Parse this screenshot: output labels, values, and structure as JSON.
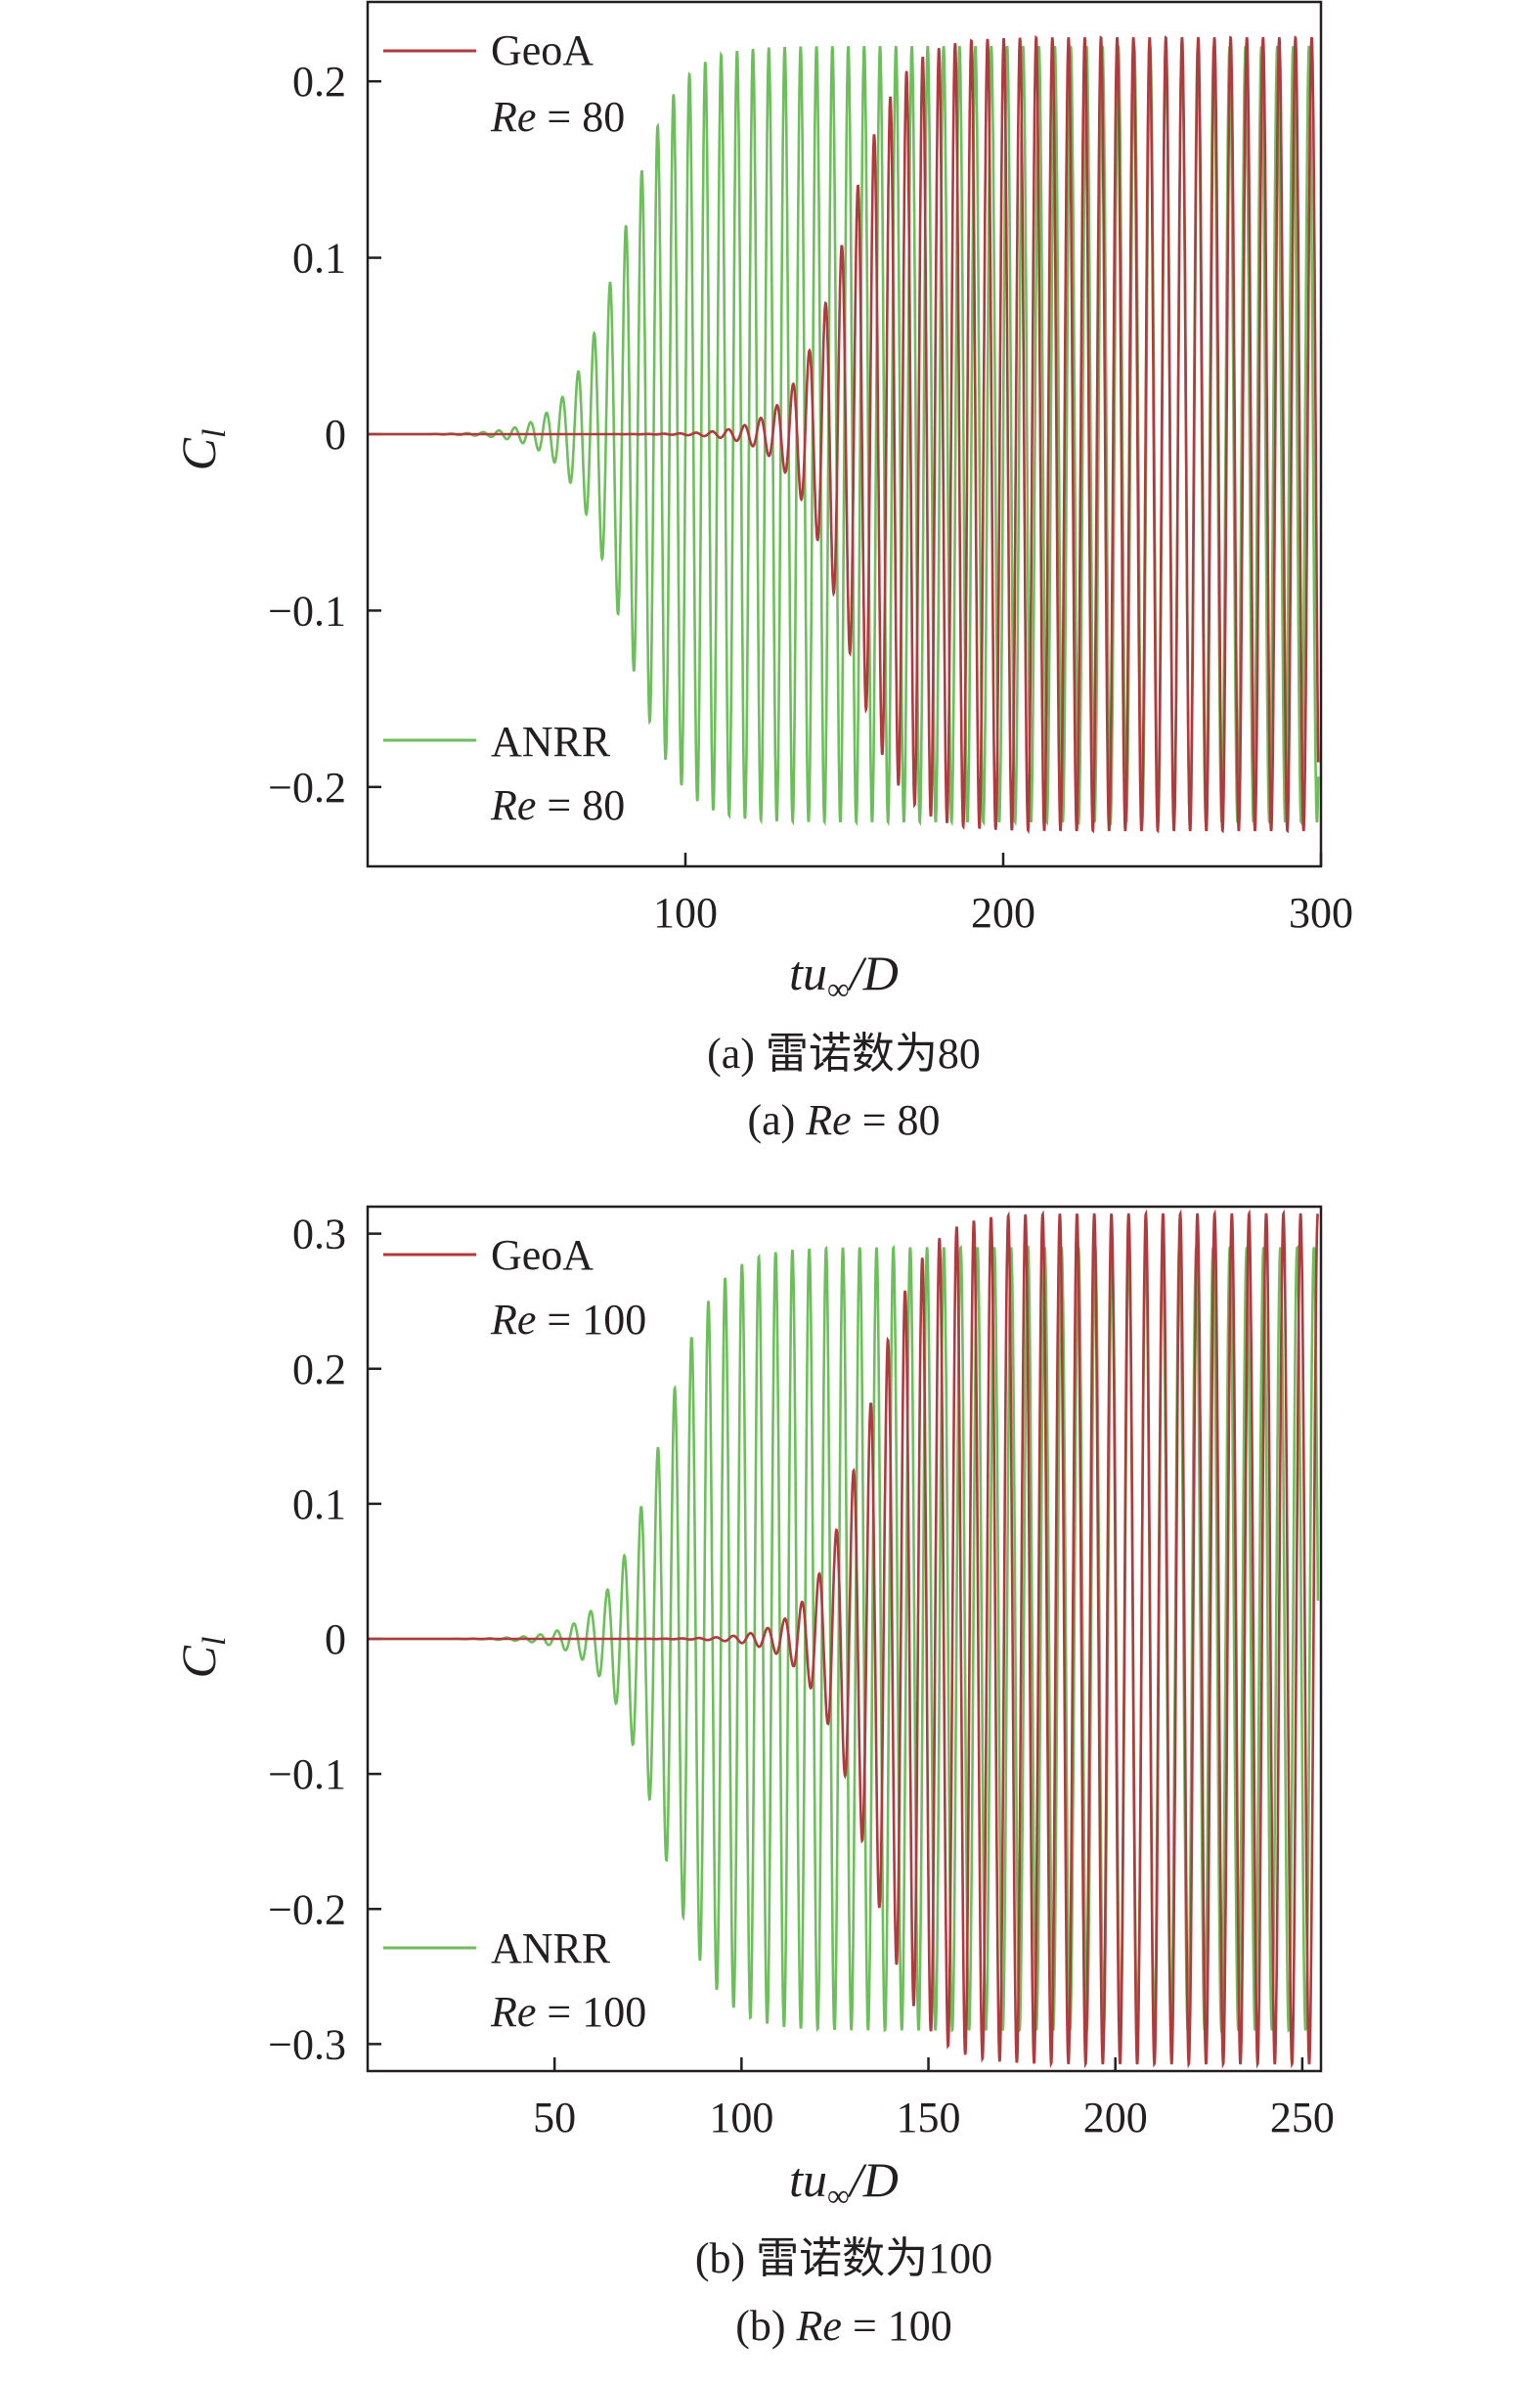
{
  "chart_data": [
    {
      "type": "line",
      "caption_cn": "(a) 雷诺数为80",
      "caption_en_prefix": "(a) ",
      "caption_en_re": "Re",
      "caption_en_suffix": " = 80",
      "ylabel_main": "C",
      "ylabel_sub": "l",
      "xlabel_main": "tu",
      "xlabel_sub": "∞",
      "xlabel_tail": "/D",
      "xlim": [
        0,
        300
      ],
      "ylim": [
        -0.245,
        0.245
      ],
      "xticks": [
        100,
        200,
        300
      ],
      "xtick_labels": [
        "100",
        "200",
        "300"
      ],
      "yticks": [
        0.2,
        0.1,
        0,
        -0.1,
        -0.2
      ],
      "ytick_labels": [
        "0.2",
        "0.1",
        "0",
        "−0.1",
        "−0.2"
      ],
      "grid": false,
      "series": [
        {
          "name": "GeoA",
          "re_label": "Re",
          "re_value": " = 80",
          "color": "#b03a3e",
          "period": 5.1,
          "amplitude": 0.225,
          "onset": 20,
          "midpoint": 150,
          "growth": 0.12,
          "legend_position": "top-left"
        },
        {
          "name": "ANRR",
          "re_label": "Re",
          "re_value": " = 80",
          "color": "#6cbf5a",
          "period": 5.0,
          "amplitude": 0.22,
          "onset": 20,
          "midpoint": 80,
          "growth": 0.12,
          "legend_position": "bottom-left"
        }
      ]
    },
    {
      "type": "line",
      "caption_cn": "(b) 雷诺数为100",
      "caption_en_prefix": "(b) ",
      "caption_en_re": "Re",
      "caption_en_suffix": " = 100",
      "ylabel_main": "C",
      "ylabel_sub": "l",
      "xlabel_main": "tu",
      "xlabel_sub": "∞",
      "xlabel_tail": "/D",
      "xlim": [
        0,
        255
      ],
      "ylim": [
        -0.32,
        0.32
      ],
      "xticks": [
        50,
        100,
        150,
        200,
        250
      ],
      "xtick_labels": [
        "50",
        "100",
        "150",
        "200",
        "250"
      ],
      "yticks": [
        0.3,
        0.2,
        0.1,
        0,
        -0.1,
        -0.2,
        -0.3
      ],
      "ytick_labels": [
        "0.3",
        "0.2",
        "0.1",
        "0",
        "−0.1",
        "−0.2",
        "−0.3"
      ],
      "grid": false,
      "series": [
        {
          "name": "GeoA",
          "re_label": "Re",
          "re_value": " = 100",
          "color": "#b03a3e",
          "period": 4.6,
          "amplitude": 0.315,
          "onset": 20,
          "midpoint": 133,
          "growth": 0.14,
          "legend_position": "top-left"
        },
        {
          "name": "ANRR",
          "re_label": "Re",
          "re_value": " = 100",
          "color": "#6cbf5a",
          "period": 4.5,
          "amplitude": 0.29,
          "onset": 20,
          "midpoint": 78,
          "growth": 0.14,
          "legend_position": "bottom-left"
        }
      ]
    }
  ]
}
